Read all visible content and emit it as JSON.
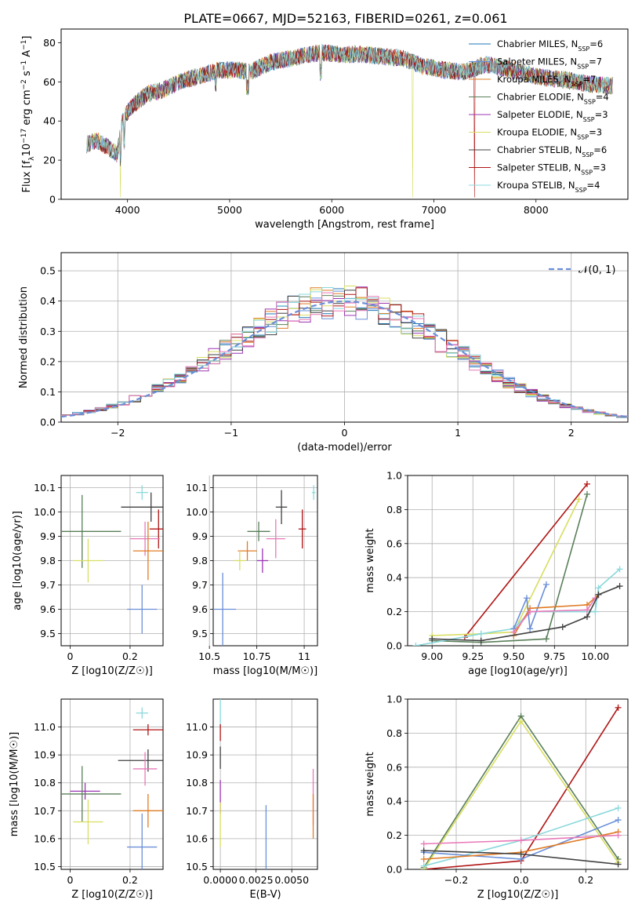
{
  "chart_data": [
    {
      "type": "line",
      "title": "PLATE=0667, MJD=52163, FIBERID=0261, z=0.061",
      "xlabel": "wavelength [Angstrom, rest frame]",
      "ylabel": "Flux [f_λ 10^-17 erg cm^-2 s^-1 A^-1]",
      "xlim": [
        3350,
        8900
      ],
      "ylim": [
        0,
        87
      ],
      "xticks": [
        4000,
        5000,
        6000,
        7000,
        8000
      ],
      "yticks": [
        0,
        20,
        40,
        60,
        80
      ],
      "legend_position": "upper-right",
      "series": [
        {
          "name": "Chabrier MILES, N_SSP=6",
          "color": "#1f77b4"
        },
        {
          "name": "Salpeter MILES, N_SSP=7",
          "color": "#6a8fd8"
        },
        {
          "name": "Kroupa MILES, N_SSP=7",
          "color": "#e07b24"
        },
        {
          "name": "Chabrier ELODIE, N_SSP=4",
          "color": "#5a7f5a"
        },
        {
          "name": "Salpeter ELODIE, N_SSP=3",
          "color": "#9b35b5"
        },
        {
          "name": "Kroupa ELODIE, N_SSP=3",
          "color": "#d8de60"
        },
        {
          "name": "Chabrier STELIB, N_SSP=6",
          "color": "#404040"
        },
        {
          "name": "Salpeter STELIB, N_SSP=3",
          "color": "#b01515"
        },
        {
          "name": "Kroupa STELIB, N_SSP=4",
          "color": "#8ad8dc"
        }
      ],
      "approx_continuum": {
        "x": [
          3600,
          3700,
          3800,
          3900,
          3950,
          4000,
          4100,
          4200,
          4300,
          4400,
          4500,
          4700,
          4900,
          5100,
          5200,
          5400,
          5600,
          5800,
          5900,
          6100,
          6300,
          6500,
          6700,
          6900,
          7100,
          7300,
          7500,
          7700,
          7900,
          8100,
          8300,
          8500,
          8700
        ],
        "y": [
          28,
          30,
          27,
          23,
          40,
          45,
          50,
          54,
          55,
          57,
          60,
          63,
          66,
          66,
          65,
          70,
          72,
          74,
          75,
          74,
          74,
          73,
          72,
          68,
          66,
          65,
          69,
          67,
          64,
          62,
          61,
          59,
          58
        ]
      }
    },
    {
      "type": "histogram",
      "xlabel": "(data-model)/error",
      "ylabel": "Normed distribution",
      "xlim": [
        -2.5,
        2.5
      ],
      "ylim": [
        0,
        0.56
      ],
      "xticks": [
        -2,
        -1,
        0,
        1,
        2
      ],
      "yticks": [
        0.0,
        0.1,
        0.2,
        0.3,
        0.4,
        0.5
      ],
      "legend_label": "𝒩(0, 1)",
      "bin_width": 0.1,
      "curve_color": "#6a8fd8"
    },
    {
      "type": "scatter",
      "xlabel": "Z [log10(Z/Z☉)]",
      "ylabel": "age  [log10(age/yr)]",
      "xlim": [
        -0.03,
        0.31
      ],
      "ylim": [
        9.45,
        10.15
      ],
      "xticks": [
        0.0,
        0.2
      ],
      "yticks": [
        9.5,
        9.6,
        9.7,
        9.8,
        9.9,
        10.0,
        10.1
      ],
      "points": [
        {
          "x": 0.24,
          "y": 10.08,
          "xerr": 0.02,
          "yerr": 0.03,
          "color": "#8ad8dc"
        },
        {
          "x": 0.27,
          "y": 10.02,
          "xerr": 0.1,
          "yerr": 0.06,
          "color": "#404040"
        },
        {
          "x": 0.295,
          "y": 9.93,
          "xerr": 0.03,
          "yerr": 0.08,
          "color": "#b01515"
        },
        {
          "x": 0.04,
          "y": 9.92,
          "xerr": 0.13,
          "yerr": 0.15,
          "color": "#5a7f5a"
        },
        {
          "x": 0.25,
          "y": 9.89,
          "xerr": 0.05,
          "yerr": 0.07,
          "color": "#e879b8"
        },
        {
          "x": 0.26,
          "y": 9.84,
          "xerr": 0.05,
          "yerr": 0.12,
          "color": "#e07b24"
        },
        {
          "x": 0.06,
          "y": 9.8,
          "xerr": 0.05,
          "yerr": 0.09,
          "color": "#d8de60"
        },
        {
          "x": 0.24,
          "y": 9.6,
          "xerr": 0.05,
          "yerr": 0.1,
          "color": "#6a8fd8"
        }
      ]
    },
    {
      "type": "scatter",
      "xlabel": "mass [log10(M/M☉)]",
      "ylabel": "",
      "xlim": [
        10.52,
        11.07
      ],
      "ylim": [
        9.45,
        10.15
      ],
      "xticks": [
        10.5,
        10.75,
        11.0
      ],
      "yticks": [
        9.5,
        9.6,
        9.7,
        9.8,
        9.9,
        10.0,
        10.1
      ],
      "points": [
        {
          "x": 11.05,
          "y": 10.08,
          "xerr": 0.01,
          "yerr": 0.03,
          "color": "#8ad8dc"
        },
        {
          "x": 10.88,
          "y": 10.02,
          "xerr": 0.03,
          "yerr": 0.07,
          "color": "#404040"
        },
        {
          "x": 10.99,
          "y": 9.93,
          "xerr": 0.02,
          "yerr": 0.08,
          "color": "#b01515"
        },
        {
          "x": 10.76,
          "y": 9.92,
          "xerr": 0.06,
          "yerr": 0.04,
          "color": "#5a7f5a"
        },
        {
          "x": 10.85,
          "y": 9.89,
          "xerr": 0.05,
          "yerr": 0.08,
          "color": "#e879b8"
        },
        {
          "x": 10.7,
          "y": 9.84,
          "xerr": 0.05,
          "yerr": 0.04,
          "color": "#e07b24"
        },
        {
          "x": 10.78,
          "y": 9.8,
          "xerr": 0.03,
          "yerr": 0.05,
          "color": "#9b35b5"
        },
        {
          "x": 10.66,
          "y": 9.8,
          "xerr": 0.03,
          "yerr": 0.04,
          "color": "#d8de60"
        },
        {
          "x": 10.57,
          "y": 9.6,
          "xerr": 0.07,
          "yerr": 0.15,
          "color": "#6a8fd8"
        }
      ]
    },
    {
      "type": "line",
      "xlabel": "age  [log10(age/yr)]",
      "ylabel": "mass weight",
      "xlim": [
        8.85,
        10.2
      ],
      "ylim": [
        0,
        1.0
      ],
      "xticks": [
        9.0,
        9.25,
        9.5,
        9.75,
        10.0
      ],
      "yticks": [
        0.0,
        0.2,
        0.4,
        0.6,
        0.8,
        1.0
      ],
      "series": [
        {
          "color": "#b01515",
          "x": [
            9.2,
            9.95
          ],
          "y": [
            0.05,
            0.95
          ]
        },
        {
          "color": "#5a7f5a",
          "x": [
            9.0,
            9.3,
            9.7,
            9.95
          ],
          "y": [
            0.03,
            0.02,
            0.04,
            0.89
          ]
        },
        {
          "color": "#d8de60",
          "x": [
            9.0,
            9.3,
            9.5,
            9.9
          ],
          "y": [
            0.06,
            0.07,
            0.08,
            0.86
          ]
        },
        {
          "color": "#8ad8dc",
          "x": [
            8.9,
            9.3,
            9.5,
            9.6,
            10.0,
            10.02,
            10.15
          ],
          "y": [
            0.0,
            0.07,
            0.1,
            0.2,
            0.2,
            0.34,
            0.45
          ]
        },
        {
          "color": "#6a8fd8",
          "x": [
            9.5,
            9.58,
            9.6,
            9.7
          ],
          "y": [
            0.1,
            0.28,
            0.1,
            0.36
          ]
        },
        {
          "color": "#e07b24",
          "x": [
            9.5,
            9.6,
            9.95,
            10.02
          ],
          "y": [
            0.06,
            0.22,
            0.24,
            0.3
          ]
        },
        {
          "color": "#e879b8",
          "x": [
            9.5,
            9.6,
            9.95,
            10.0
          ],
          "y": [
            0.08,
            0.2,
            0.21,
            0.28
          ]
        },
        {
          "color": "#404040",
          "x": [
            9.0,
            9.3,
            9.8,
            9.95,
            10.02,
            10.15
          ],
          "y": [
            0.04,
            0.03,
            0.11,
            0.17,
            0.3,
            0.35
          ]
        }
      ]
    },
    {
      "type": "scatter",
      "xlabel": "Z [log10(Z/Z☉)]",
      "ylabel": "mass [log10(M/M☉)]",
      "xlim": [
        -0.03,
        0.31
      ],
      "ylim": [
        10.49,
        11.1
      ],
      "xticks": [
        0.0,
        0.2
      ],
      "yticks": [
        10.5,
        10.6,
        10.7,
        10.8,
        10.9,
        11.0
      ],
      "points": [
        {
          "x": 0.24,
          "y": 11.05,
          "xerr": 0.02,
          "yerr": 0.02,
          "color": "#8ad8dc"
        },
        {
          "x": 0.26,
          "y": 10.99,
          "xerr": 0.05,
          "yerr": 0.02,
          "color": "#b01515"
        },
        {
          "x": 0.26,
          "y": 10.88,
          "xerr": 0.1,
          "yerr": 0.04,
          "color": "#404040"
        },
        {
          "x": 0.25,
          "y": 10.85,
          "xerr": 0.04,
          "yerr": 0.06,
          "color": "#e879b8"
        },
        {
          "x": 0.05,
          "y": 10.77,
          "xerr": 0.05,
          "yerr": 0.03,
          "color": "#9b35b5"
        },
        {
          "x": 0.04,
          "y": 10.76,
          "xerr": 0.13,
          "yerr": 0.1,
          "color": "#5a7f5a"
        },
        {
          "x": 0.26,
          "y": 10.7,
          "xerr": 0.05,
          "yerr": 0.06,
          "color": "#e07b24"
        },
        {
          "x": 0.06,
          "y": 10.66,
          "xerr": 0.05,
          "yerr": 0.08,
          "color": "#d8de60"
        },
        {
          "x": 0.24,
          "y": 10.57,
          "xerr": 0.05,
          "yerr": 0.12,
          "color": "#6a8fd8"
        }
      ]
    },
    {
      "type": "scatter",
      "xlabel": "E(B-V)",
      "ylabel": "",
      "xlim": [
        -0.0005,
        0.0068
      ],
      "ylim": [
        10.49,
        11.1
      ],
      "xticks": [
        0.0,
        0.0025,
        0.005
      ],
      "xtick_labels": [
        "0.0000",
        "0.0025",
        "0.0050"
      ],
      "yticks": [
        10.5,
        10.6,
        10.7,
        10.8,
        10.9,
        11.0
      ],
      "points": [
        {
          "x": 0.0,
          "y": 11.05,
          "xerr": 0.0,
          "yerr": 0.05,
          "color": "#8ad8dc"
        },
        {
          "x": 0.0,
          "y": 10.98,
          "xerr": 0.0,
          "yerr": 0.03,
          "color": "#b01515"
        },
        {
          "x": 0.0,
          "y": 10.89,
          "xerr": 0.0,
          "yerr": 0.04,
          "color": "#404040"
        },
        {
          "x": 0.0,
          "y": 10.75,
          "xerr": 0.0,
          "yerr": 0.06,
          "color": "#9b35b5"
        },
        {
          "x": 0.0,
          "y": 10.65,
          "xerr": 0.0,
          "yerr": 0.08,
          "color": "#d8de60"
        },
        {
          "x": 0.0032,
          "y": 10.6,
          "xerr": 0.0,
          "yerr": 0.12,
          "color": "#6a8fd8"
        },
        {
          "x": 0.0065,
          "y": 10.75,
          "xerr": 0.0,
          "yerr": 0.1,
          "color": "#e879b8"
        },
        {
          "x": 0.0065,
          "y": 10.68,
          "xerr": 0.0,
          "yerr": 0.08,
          "color": "#e07b24"
        }
      ]
    },
    {
      "type": "line",
      "xlabel": "Z [log10(Z/Z☉)]",
      "ylabel": "mass weight",
      "xlim": [
        -0.35,
        0.33
      ],
      "ylim": [
        0,
        1.0
      ],
      "xticks": [
        -0.2,
        0.0,
        0.2
      ],
      "yticks": [
        0.0,
        0.2,
        0.4,
        0.6,
        0.8,
        1.0
      ],
      "series": [
        {
          "color": "#b01515",
          "x": [
            -0.3,
            0.0,
            0.3
          ],
          "y": [
            0.0,
            0.05,
            0.95
          ]
        },
        {
          "color": "#5a7f5a",
          "x": [
            -0.3,
            0.0,
            0.3
          ],
          "y": [
            0.01,
            0.9,
            0.06
          ]
        },
        {
          "color": "#d8de60",
          "x": [
            -0.3,
            0.0,
            0.3
          ],
          "y": [
            0.0,
            0.87,
            0.04
          ]
        },
        {
          "color": "#8ad8dc",
          "x": [
            -0.3,
            0.0,
            0.3
          ],
          "y": [
            0.02,
            0.17,
            0.36
          ]
        },
        {
          "color": "#6a8fd8",
          "x": [
            -0.3,
            0.0,
            0.3
          ],
          "y": [
            0.1,
            0.06,
            0.29
          ]
        },
        {
          "color": "#e07b24",
          "x": [
            -0.3,
            0.0,
            0.3
          ],
          "y": [
            0.06,
            0.1,
            0.22
          ]
        },
        {
          "color": "#e879b8",
          "x": [
            -0.3,
            0.0,
            0.3
          ],
          "y": [
            0.15,
            0.17,
            0.2
          ]
        },
        {
          "color": "#404040",
          "x": [
            -0.3,
            0.0,
            0.3
          ],
          "y": [
            0.11,
            0.09,
            0.03
          ]
        }
      ]
    }
  ]
}
